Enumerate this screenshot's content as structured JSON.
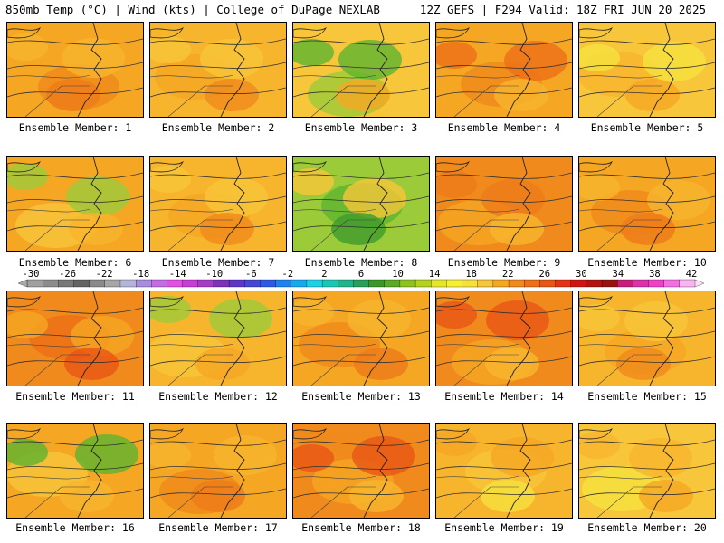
{
  "header": {
    "left_title": "850mb Temp (°C) | Wind (kts) | College of DuPage NEXLAB",
    "right_title": "12Z GEFS | F294 Valid: 18Z FRI JUN 20 2025"
  },
  "panels": [
    {
      "label": "Ensemble Member: 1",
      "palette": [
        "#f5a623",
        "#f08a1c",
        "#f7b52e",
        "#ee7a19"
      ]
    },
    {
      "label": "Ensemble Member: 2",
      "palette": [
        "#f7b52e",
        "#f5a623",
        "#f8c63a",
        "#f08a1c"
      ]
    },
    {
      "label": "Ensemble Member: 3",
      "palette": [
        "#f8c63a",
        "#9ccb3a",
        "#5db42f",
        "#f5a623"
      ]
    },
    {
      "label": "Ensemble Member: 4",
      "palette": [
        "#f5a623",
        "#f08a1c",
        "#ee6f17",
        "#f7b52e"
      ]
    },
    {
      "label": "Ensemble Member: 5",
      "palette": [
        "#f8c63a",
        "#f7b52e",
        "#f5e13f",
        "#f5a623"
      ]
    },
    {
      "label": "Ensemble Member: 6",
      "palette": [
        "#f5a623",
        "#f8c63a",
        "#9ccb3a",
        "#f7b52e"
      ]
    },
    {
      "label": "Ensemble Member: 7",
      "palette": [
        "#f7b52e",
        "#f5a623",
        "#f8c63a",
        "#f08a1c"
      ]
    },
    {
      "label": "Ensemble Member: 8",
      "palette": [
        "#9ccb3a",
        "#5db42f",
        "#f8c63a",
        "#3f9b2c"
      ]
    },
    {
      "label": "Ensemble Member: 9",
      "palette": [
        "#f08a1c",
        "#f5a623",
        "#ee7a19",
        "#f7b52e"
      ]
    },
    {
      "label": "Ensemble Member: 10",
      "palette": [
        "#f5a623",
        "#f08a1c",
        "#f7b52e",
        "#ee7a19"
      ]
    },
    {
      "label": "Ensemble Member: 11",
      "palette": [
        "#f08a1c",
        "#ee6f17",
        "#f5a623",
        "#e85515"
      ]
    },
    {
      "label": "Ensemble Member: 12",
      "palette": [
        "#f7b52e",
        "#f8c63a",
        "#9ccb3a",
        "#f5a623"
      ]
    },
    {
      "label": "Ensemble Member: 13",
      "palette": [
        "#f5a623",
        "#f08a1c",
        "#f7b52e",
        "#ee7a19"
      ]
    },
    {
      "label": "Ensemble Member: 14",
      "palette": [
        "#f08a1c",
        "#f5a623",
        "#e85515",
        "#f7b52e"
      ]
    },
    {
      "label": "Ensemble Member: 15",
      "palette": [
        "#f7b52e",
        "#f5a623",
        "#f8c63a",
        "#f08a1c"
      ]
    },
    {
      "label": "Ensemble Member: 16",
      "palette": [
        "#f5a623",
        "#f8c63a",
        "#5db42f",
        "#f7b52e"
      ]
    },
    {
      "label": "Ensemble Member: 17",
      "palette": [
        "#f5a623",
        "#f08a1c",
        "#f7b52e",
        "#ee7a19"
      ]
    },
    {
      "label": "Ensemble Member: 18",
      "palette": [
        "#f08a1c",
        "#f5a623",
        "#e85515",
        "#f7b52e"
      ]
    },
    {
      "label": "Ensemble Member: 19",
      "palette": [
        "#f7b52e",
        "#f8c63a",
        "#f5a623",
        "#f5e13f"
      ]
    },
    {
      "label": "Ensemble Member: 20",
      "palette": [
        "#f8c63a",
        "#f5e13f",
        "#f7b52e",
        "#f5a623"
      ]
    }
  ],
  "colorbar": {
    "labels": [
      "-30",
      "-26",
      "-22",
      "-18",
      "-14",
      "-10",
      "-6",
      "-2",
      "2",
      "6",
      "10",
      "14",
      "18",
      "22",
      "26",
      "30",
      "34",
      "38",
      "42"
    ],
    "colors": [
      "#a0a0a0",
      "#8c8c8c",
      "#787878",
      "#646464",
      "#8a8a8a",
      "#a6a6a6",
      "#b4b4d8",
      "#a98ce0",
      "#c46be6",
      "#e14fe6",
      "#c83cd8",
      "#a53cc8",
      "#7d32b9",
      "#5f37c8",
      "#4646d7",
      "#2f5ae6",
      "#1e82f0",
      "#14aaf0",
      "#1ed2e6",
      "#19c8b4",
      "#1eb48c",
      "#28a05a",
      "#3c9628",
      "#5aaa28",
      "#8cc31e",
      "#b4d21e",
      "#e6e628",
      "#f5f032",
      "#f8e03a",
      "#f8c63a",
      "#f5a623",
      "#f08a1c",
      "#ee6f17",
      "#e85515",
      "#e63214",
      "#d2140f",
      "#b4140f",
      "#96140f",
      "#c81e78",
      "#dc32aa",
      "#f040c8",
      "#f56ee1",
      "#fab4f0"
    ]
  }
}
